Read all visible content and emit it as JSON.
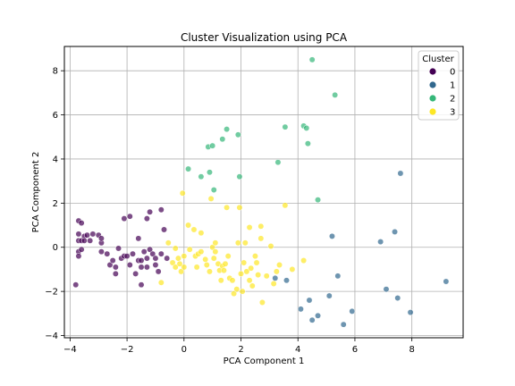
{
  "chart_data": {
    "type": "scatter",
    "title": "Cluster Visualization using PCA",
    "xlabel": "PCA Component 1",
    "ylabel": "PCA Component 2",
    "xlim": [
      -4.2,
      9.8
    ],
    "ylim": [
      -4.1,
      9.1
    ],
    "xticks": [
      -4,
      -2,
      0,
      2,
      4,
      6,
      8
    ],
    "yticks": [
      -4,
      -2,
      0,
      2,
      4,
      6,
      8
    ],
    "grid": true,
    "legend": {
      "title": "Cluster",
      "placement": "top-right"
    },
    "series": [
      {
        "name": "0",
        "color": "#440154",
        "points": [
          [
            -3.8,
            -1.7
          ],
          [
            -3.7,
            1.2
          ],
          [
            -3.6,
            1.1
          ],
          [
            -3.7,
            0.6
          ],
          [
            -3.7,
            0.3
          ],
          [
            -3.7,
            -0.2
          ],
          [
            -3.7,
            -0.4
          ],
          [
            -3.6,
            -0.1
          ],
          [
            -3.6,
            0.3
          ],
          [
            -3.5,
            0.5
          ],
          [
            -3.5,
            0.3
          ],
          [
            -3.4,
            0.55
          ],
          [
            -3.3,
            0.3
          ],
          [
            -3.2,
            0.6
          ],
          [
            -3.0,
            0.55
          ],
          [
            -2.9,
            0.2
          ],
          [
            -2.9,
            0.4
          ],
          [
            -2.9,
            -0.2
          ],
          [
            -2.7,
            -0.3
          ],
          [
            -2.6,
            -0.8
          ],
          [
            -2.5,
            -0.6
          ],
          [
            -2.4,
            -0.9
          ],
          [
            -2.4,
            -1.2
          ],
          [
            -2.3,
            -0.05
          ],
          [
            -2.2,
            -0.5
          ],
          [
            -2.1,
            -0.4
          ],
          [
            -2.1,
            1.3
          ],
          [
            -2.0,
            -0.4
          ],
          [
            -1.9,
            1.4
          ],
          [
            -1.9,
            -0.8
          ],
          [
            -1.8,
            -0.3
          ],
          [
            -1.7,
            -1.2
          ],
          [
            -1.6,
            -0.6
          ],
          [
            -1.6,
            0.4
          ],
          [
            -1.5,
            -1.7
          ],
          [
            -1.5,
            -0.6
          ],
          [
            -1.5,
            -0.9
          ],
          [
            -1.4,
            -0.2
          ],
          [
            -1.3,
            -0.5
          ],
          [
            -1.3,
            -0.9
          ],
          [
            -1.2,
            -0.1
          ],
          [
            -1.1,
            -0.3
          ],
          [
            -1.0,
            -0.5
          ],
          [
            -1.0,
            -0.8
          ],
          [
            -0.9,
            -1.1
          ],
          [
            -0.8,
            1.7
          ],
          [
            -0.8,
            -0.3
          ],
          [
            -0.7,
            0.8
          ],
          [
            -0.6,
            -0.5
          ],
          [
            -1.3,
            1.3
          ],
          [
            -1.2,
            1.6
          ]
        ]
      },
      {
        "name": "1",
        "color": "#31688e",
        "points": [
          [
            3.2,
            -1.4
          ],
          [
            3.6,
            -1.5
          ],
          [
            4.1,
            -2.8
          ],
          [
            4.4,
            -2.4
          ],
          [
            4.5,
            -3.3
          ],
          [
            4.7,
            -3.1
          ],
          [
            5.1,
            -2.2
          ],
          [
            5.2,
            0.5
          ],
          [
            5.4,
            -1.3
          ],
          [
            5.6,
            -3.5
          ],
          [
            5.9,
            -2.9
          ],
          [
            6.9,
            0.25
          ],
          [
            7.1,
            -1.9
          ],
          [
            7.4,
            0.7
          ],
          [
            7.5,
            -2.3
          ],
          [
            7.6,
            3.35
          ],
          [
            7.95,
            -2.95
          ],
          [
            9.2,
            -1.55
          ]
        ]
      },
      {
        "name": "2",
        "color": "#35b779",
        "points": [
          [
            0.15,
            3.55
          ],
          [
            0.6,
            3.2
          ],
          [
            0.85,
            4.55
          ],
          [
            0.9,
            3.4
          ],
          [
            1.0,
            4.6
          ],
          [
            1.05,
            2.6
          ],
          [
            1.35,
            4.9
          ],
          [
            1.5,
            5.35
          ],
          [
            1.9,
            5.1
          ],
          [
            1.95,
            3.2
          ],
          [
            3.3,
            3.85
          ],
          [
            3.55,
            5.45
          ],
          [
            4.2,
            5.5
          ],
          [
            4.3,
            5.4
          ],
          [
            4.35,
            4.7
          ],
          [
            4.5,
            8.5
          ],
          [
            4.7,
            2.15
          ],
          [
            5.3,
            6.9
          ]
        ]
      },
      {
        "name": "3",
        "color": "#fde725",
        "points": [
          [
            -0.4,
            -0.7
          ],
          [
            -0.3,
            -0.05
          ],
          [
            -0.3,
            -0.9
          ],
          [
            -0.2,
            -0.5
          ],
          [
            -0.15,
            -0.75
          ],
          [
            -0.1,
            -1.1
          ],
          [
            -0.05,
            2.45
          ],
          [
            0.0,
            -0.4
          ],
          [
            0.0,
            -0.9
          ],
          [
            0.15,
            1.0
          ],
          [
            0.2,
            -0.1
          ],
          [
            0.35,
            0.8
          ],
          [
            0.4,
            -0.4
          ],
          [
            0.45,
            -0.9
          ],
          [
            0.5,
            -0.3
          ],
          [
            0.6,
            0.65
          ],
          [
            0.6,
            -0.2
          ],
          [
            0.75,
            -0.55
          ],
          [
            0.8,
            -0.8
          ],
          [
            0.9,
            -1.1
          ],
          [
            0.95,
            2.2
          ],
          [
            1.0,
            0.0
          ],
          [
            1.05,
            -0.5
          ],
          [
            1.1,
            -0.2
          ],
          [
            1.1,
            0.2
          ],
          [
            1.2,
            -0.75
          ],
          [
            1.25,
            -1.05
          ],
          [
            1.3,
            -1.5
          ],
          [
            1.35,
            -0.85
          ],
          [
            1.4,
            -1.05
          ],
          [
            1.45,
            -0.75
          ],
          [
            1.5,
            1.8
          ],
          [
            1.55,
            -0.4
          ],
          [
            1.6,
            -1.4
          ],
          [
            1.7,
            -1.5
          ],
          [
            1.75,
            -2.1
          ],
          [
            1.85,
            -1.9
          ],
          [
            1.9,
            0.2
          ],
          [
            1.95,
            1.8
          ],
          [
            2.0,
            -1.2
          ],
          [
            2.05,
            -2.0
          ],
          [
            2.1,
            -0.7
          ],
          [
            2.2,
            -1.1
          ],
          [
            2.3,
            -1.5
          ],
          [
            2.35,
            -0.95
          ],
          [
            2.4,
            -1.75
          ],
          [
            2.5,
            -0.4
          ],
          [
            2.55,
            -0.7
          ],
          [
            2.6,
            -1.25
          ],
          [
            2.7,
            0.95
          ],
          [
            2.7,
            0.4
          ],
          [
            2.75,
            -2.5
          ],
          [
            2.9,
            -1.3
          ],
          [
            3.05,
            0.05
          ],
          [
            3.15,
            -1.65
          ],
          [
            3.25,
            -1.1
          ],
          [
            3.35,
            -0.8
          ],
          [
            3.55,
            1.9
          ],
          [
            3.8,
            -1.0
          ],
          [
            4.2,
            -0.6
          ],
          [
            2.15,
            0.2
          ],
          [
            2.3,
            0.9
          ],
          [
            -0.8,
            -1.6
          ],
          [
            -0.55,
            0.2
          ]
        ]
      }
    ]
  }
}
